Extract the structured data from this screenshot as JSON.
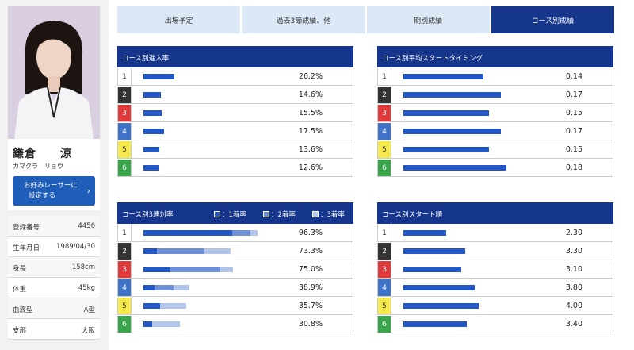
{
  "colors": {
    "navy": "#15368a",
    "tab_inactive": "#dce8f6",
    "bar_primary": "#2457c6",
    "bar_secondary": "#6f90d6",
    "bar_tertiary": "#b2c5ea",
    "rank_colors": [
      "#ffffff",
      "#333333",
      "#e03a3a",
      "#3f73c9",
      "#f5e94c",
      "#3aa64a"
    ],
    "rank_text_colors": [
      "#333333",
      "#ffffff",
      "#ffffff",
      "#ffffff",
      "#333333",
      "#ffffff"
    ]
  },
  "profile": {
    "name": "鎌倉　　涼",
    "kana": "カマクラ　リョウ",
    "favorite_button": {
      "line1": "お好みレーサーに",
      "line2": "設定する",
      "icon": "chevron-right-icon"
    },
    "rows": [
      {
        "label": "登録番号",
        "value": "4456"
      },
      {
        "label": "生年月日",
        "value": "1989/04/30"
      },
      {
        "label": "身長",
        "value": "158cm"
      },
      {
        "label": "体重",
        "value": "45kg"
      },
      {
        "label": "血液型",
        "value": "A型"
      },
      {
        "label": "支部",
        "value": "大阪"
      }
    ]
  },
  "tabs": [
    {
      "label": "出場予定",
      "active": false
    },
    {
      "label": "過去3節成績、他",
      "active": false
    },
    {
      "label": "期別成績",
      "active": false
    },
    {
      "label": "コース別成績",
      "active": true
    }
  ],
  "panels": {
    "entry_rate": {
      "title": "コース別進入率",
      "max": 100,
      "rows": [
        {
          "rank": "1",
          "value": 26.2,
          "label": "26.2%"
        },
        {
          "rank": "2",
          "value": 14.6,
          "label": "14.6%"
        },
        {
          "rank": "3",
          "value": 15.5,
          "label": "15.5%"
        },
        {
          "rank": "4",
          "value": 17.5,
          "label": "17.5%"
        },
        {
          "rank": "5",
          "value": 13.6,
          "label": "13.6%"
        },
        {
          "rank": "6",
          "value": 12.6,
          "label": "12.6%"
        }
      ]
    },
    "start_timing": {
      "title": "コース別平均スタートタイミング",
      "max": 0.18,
      "rows": [
        {
          "rank": "1",
          "value": 0.14,
          "label": "0.14"
        },
        {
          "rank": "2",
          "value": 0.17,
          "label": "0.17"
        },
        {
          "rank": "3",
          "value": 0.15,
          "label": "0.15"
        },
        {
          "rank": "4",
          "value": 0.17,
          "label": "0.17"
        },
        {
          "rank": "5",
          "value": 0.15,
          "label": "0.15"
        },
        {
          "rank": "6",
          "value": 0.18,
          "label": "0.18"
        }
      ]
    },
    "top3_rate": {
      "title": "コース別3連対率",
      "legend": [
        "：1着率",
        "：2着率",
        "：3着率"
      ],
      "max": 100,
      "rows": [
        {
          "rank": "1",
          "segments": [
            74.5,
            15.8,
            6.0
          ],
          "label": "96.3%"
        },
        {
          "rank": "2",
          "segments": [
            11.0,
            40.0,
            22.3
          ],
          "label": "73.3%"
        },
        {
          "rank": "3",
          "segments": [
            22.0,
            42.5,
            10.5
          ],
          "label": "75.0%"
        },
        {
          "rank": "4",
          "segments": [
            9.5,
            15.6,
            13.8
          ],
          "label": "38.9%"
        },
        {
          "rank": "5",
          "segments": [
            14.0,
            0.0,
            21.7
          ],
          "label": "35.7%"
        },
        {
          "rank": "6",
          "segments": [
            7.0,
            0.0,
            23.8
          ],
          "label": "30.8%"
        }
      ]
    },
    "start_order": {
      "title": "コース別スタート順",
      "max": 5.5,
      "rows": [
        {
          "rank": "1",
          "value": 2.3,
          "label": "2.30"
        },
        {
          "rank": "2",
          "value": 3.3,
          "label": "3.30"
        },
        {
          "rank": "3",
          "value": 3.1,
          "label": "3.10"
        },
        {
          "rank": "4",
          "value": 3.8,
          "label": "3.80"
        },
        {
          "rank": "5",
          "value": 4.0,
          "label": "4.00"
        },
        {
          "rank": "6",
          "value": 3.4,
          "label": "3.40"
        }
      ]
    }
  }
}
